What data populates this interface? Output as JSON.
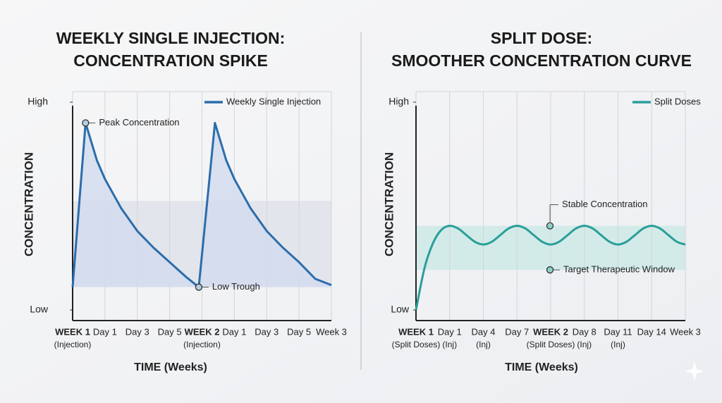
{
  "chart_data": [
    {
      "type": "line",
      "title": [
        "WEEKLY SINGLE INJECTION:",
        "CONCENTRATION SPIKE"
      ],
      "ylabel": "CONCENTRATION",
      "xlabel": "TIME (Weeks)",
      "xlim": [
        0,
        8
      ],
      "ylim": [
        0,
        10
      ],
      "yticks": [
        {
          "value": 0,
          "label": "Low"
        },
        {
          "value": 10,
          "label": "High"
        }
      ],
      "xticks": [
        {
          "value": 0,
          "label": "WEEK 1",
          "sublabel": "(Injection)",
          "bold": true
        },
        {
          "value": 1,
          "label": "Day 1"
        },
        {
          "value": 2,
          "label": "Day 3"
        },
        {
          "value": 3,
          "label": "Day 5"
        },
        {
          "value": 4,
          "label": "WEEK 2",
          "sublabel": "(Injection)",
          "bold": true
        },
        {
          "value": 5,
          "label": "Day 1"
        },
        {
          "value": 6,
          "label": "Day 3"
        },
        {
          "value": 7,
          "label": "Day 5"
        },
        {
          "value": 8,
          "label": "Week 3"
        }
      ],
      "band": [
        1.1,
        5.25
      ],
      "band_color": "#e3e5ec",
      "area_color": "#d4dcef",
      "smooth": false,
      "legend": "upper right",
      "grid": true,
      "series": [
        {
          "name": "Weekly Single Injection",
          "color": "#2b6dab",
          "x": [
            0,
            0.4,
            0.75,
            1,
            1.5,
            2,
            2.5,
            3,
            3.5,
            3.9,
            4.4,
            4.75,
            5,
            5.5,
            6,
            6.5,
            7,
            7.5,
            8
          ],
          "values": [
            1.1,
            9.0,
            7.2,
            6.3,
            4.9,
            3.8,
            3.0,
            2.3,
            1.6,
            1.1,
            9.0,
            7.2,
            6.3,
            4.9,
            3.8,
            3.0,
            2.3,
            1.5,
            1.2
          ]
        }
      ],
      "annotations": [
        {
          "text": "Peak Concentration",
          "x": 0.4,
          "y": 9.0,
          "side": "right"
        },
        {
          "text": "Low Trough",
          "x": 3.9,
          "y": 1.1,
          "side": "right"
        }
      ]
    },
    {
      "type": "line",
      "title": [
        "SPLIT DOSE:",
        "SMOOTHER CONCENTRATION CURVE"
      ],
      "ylabel": "CONCENTRATION",
      "xlabel": "TIME (Weeks)",
      "xlim": [
        0,
        8
      ],
      "ylim": [
        0,
        10
      ],
      "yticks": [
        {
          "value": 0,
          "label": "Low"
        },
        {
          "value": 10,
          "label": "High"
        }
      ],
      "xticks": [
        {
          "value": 0,
          "label": "WEEK 1",
          "sublabel": "(Split Doses)",
          "bold": true
        },
        {
          "value": 1,
          "label": "Day 1",
          "sublabel": "(Inj)"
        },
        {
          "value": 2,
          "label": "Day 4",
          "sublabel": "(Inj)"
        },
        {
          "value": 3,
          "label": "Day 7"
        },
        {
          "value": 4,
          "label": "WEEK 2",
          "sublabel": "(Split Doses)",
          "bold": true
        },
        {
          "value": 5,
          "label": "Day 8",
          "sublabel": "(Inj)"
        },
        {
          "value": 6,
          "label": "Day 11",
          "sublabel": "(Inj)"
        },
        {
          "value": 7,
          "label": "Day 14"
        },
        {
          "value": 8,
          "label": "Week 3"
        }
      ],
      "band": [
        1.93,
        4.05
      ],
      "band_color": "#d2ebe8",
      "smooth": true,
      "legend": "upper right",
      "grid": true,
      "series": [
        {
          "name": "Split Doses",
          "color": "#2a9e9a",
          "x": [
            0,
            0.25,
            0.5,
            0.75,
            1,
            1.25,
            1.5,
            1.75,
            2,
            2.25,
            2.5,
            2.75,
            3,
            3.25,
            3.5,
            3.75,
            4,
            4.25,
            4.5,
            4.75,
            5,
            5.25,
            5.5,
            5.75,
            6,
            6.25,
            6.5,
            6.75,
            7,
            7.25,
            7.5,
            7.75,
            8
          ],
          "values": [
            0,
            2.0,
            3.2,
            3.85,
            4.05,
            3.92,
            3.6,
            3.28,
            3.15,
            3.28,
            3.6,
            3.92,
            4.05,
            3.92,
            3.6,
            3.28,
            3.15,
            3.28,
            3.6,
            3.92,
            4.05,
            3.92,
            3.6,
            3.28,
            3.15,
            3.28,
            3.6,
            3.92,
            4.05,
            3.92,
            3.6,
            3.28,
            3.15
          ]
        }
      ],
      "annotations": [
        {
          "text": "Stable Concentration",
          "x": 3.98,
          "y": 4.05,
          "side": "above"
        },
        {
          "text": "Target Therapeutic Window",
          "x": 3.98,
          "y": 1.93,
          "side": "right"
        }
      ]
    }
  ]
}
